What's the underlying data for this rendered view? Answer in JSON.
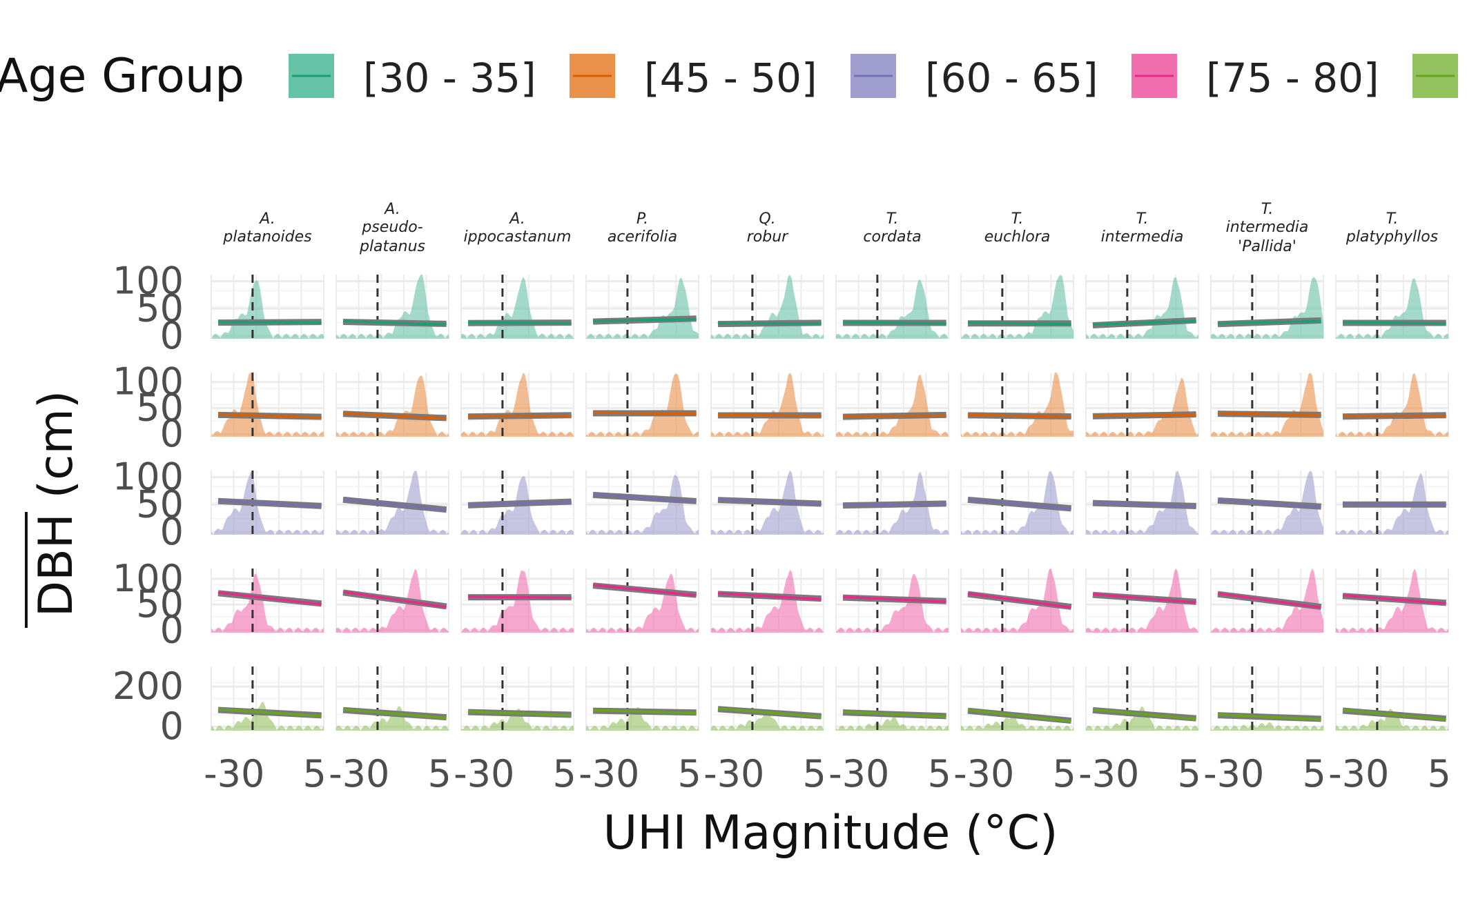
{
  "chart_data": {
    "type": "area",
    "facet_grid": true,
    "legend": {
      "title": "Age Group",
      "position": "top",
      "entries": [
        {
          "label": "[30 - 35]",
          "fill": "#66c2a5",
          "line": "#1b9e77"
        },
        {
          "label": "[45 - 50]",
          "fill": "#e9914a",
          "line": "#d95f02"
        },
        {
          "label": "[60 - 65]",
          "fill": "#a09ecf",
          "line": "#7570b3"
        },
        {
          "label": "[75 - 80]",
          "fill": "#f06eae",
          "line": "#e7298a"
        },
        {
          "label": "",
          "fill": "#93c25f",
          "line": "#66a61e"
        }
      ]
    },
    "columns": [
      [
        "A.",
        "platanoides"
      ],
      [
        "A.",
        "pseudo-",
        "platanus"
      ],
      [
        "A.",
        "ippocastanum"
      ],
      [
        "P.",
        "acerifolia"
      ],
      [
        "Q.",
        "robur"
      ],
      [
        "T.",
        "cordata"
      ],
      [
        "T.",
        "euchlora"
      ],
      [
        "T.",
        "intermedia"
      ],
      [
        "T.",
        "intermedia",
        "'Pallida'"
      ],
      [
        "T.",
        "platyphyllos"
      ]
    ],
    "rows": [
      {
        "group": "[30 - 35]",
        "yticks": [
          "100",
          "50",
          "0"
        ],
        "ytick_values": [
          100,
          50,
          0
        ],
        "ylim": [
          -5,
          112
        ]
      },
      {
        "group": "[45 - 50]",
        "yticks": [
          "100",
          "50",
          "0"
        ],
        "ytick_values": [
          100,
          50,
          0
        ],
        "ylim": [
          -5,
          118
        ]
      },
      {
        "group": "[60 - 65]",
        "yticks": [
          "100",
          "50",
          "0"
        ],
        "ytick_values": [
          100,
          50,
          0
        ],
        "ylim": [
          -5,
          112
        ]
      },
      {
        "group": "[75 - 80]",
        "yticks": [
          "100",
          "50",
          "0"
        ],
        "ytick_values": [
          100,
          50,
          0
        ],
        "ylim": [
          -5,
          120
        ]
      },
      {
        "group": "",
        "yticks": [
          "200",
          "0"
        ],
        "ytick_values": [
          200,
          0
        ],
        "ylim": [
          -20,
          300
        ]
      }
    ],
    "xticks": [
      "-30",
      "5"
    ],
    "xtick_values": [
      -30,
      5
    ],
    "xlim": [
      -40,
      9
    ],
    "reference_line_x": -22,
    "xlabel": "UHI Magnitude (°C)",
    "ylabel": "DBH (cm)",
    "ylabel_overline": true,
    "grid": true,
    "trend": {
      "means": [
        [
          25,
          24,
          24,
          29,
          23,
          24,
          23,
          24,
          25,
          24
        ],
        [
          35,
          35,
          35,
          40,
          36,
          35,
          35,
          36,
          38,
          35
        ],
        [
          52,
          50,
          52,
          62,
          55,
          50,
          51,
          50,
          52,
          50
        ],
        [
          62,
          60,
          64,
          78,
          66,
          60,
          58,
          62,
          58,
          60
        ],
        [
          70,
          65,
          66,
          75,
          70,
          62,
          55,
          62,
          48,
          60
        ]
      ],
      "slopes": [
        [
          0.03,
          -0.08,
          0.02,
          0.12,
          0.05,
          0.0,
          0.0,
          0.2,
          0.15,
          0.0
        ],
        [
          -0.08,
          -0.18,
          0.06,
          0.0,
          0.0,
          0.08,
          -0.05,
          0.08,
          -0.05,
          0.06
        ],
        [
          -0.2,
          -0.4,
          0.15,
          -0.25,
          -0.15,
          0.08,
          -0.35,
          -0.12,
          -0.25,
          0.0
        ],
        [
          -0.45,
          -0.6,
          0.0,
          -0.4,
          -0.2,
          -0.15,
          -0.55,
          -0.3,
          -0.55,
          -0.3
        ],
        [
          -0.6,
          -0.8,
          -0.3,
          -0.2,
          -0.8,
          -0.4,
          -1.1,
          -0.9,
          -0.4,
          -0.9
        ]
      ]
    },
    "density_profiles": [
      [
        [
          0.4,
          0.88
        ],
        [
          0.75,
          0.97
        ],
        [
          0.55,
          0.89
        ],
        [
          0.85,
          0.89
        ],
        [
          0.7,
          0.93
        ],
        [
          0.75,
          0.87
        ],
        [
          0.88,
          0.97
        ],
        [
          0.8,
          0.9
        ],
        [
          0.92,
          0.93
        ],
        [
          0.7,
          0.89
        ]
      ],
      [
        [
          0.35,
          0.97
        ],
        [
          0.75,
          0.92
        ],
        [
          0.55,
          0.94
        ],
        [
          0.8,
          0.96
        ],
        [
          0.7,
          0.93
        ],
        [
          0.75,
          0.9
        ],
        [
          0.85,
          0.95
        ],
        [
          0.85,
          0.85
        ],
        [
          0.88,
          0.95
        ],
        [
          0.7,
          0.92
        ]
      ],
      [
        [
          0.35,
          0.92
        ],
        [
          0.7,
          0.96
        ],
        [
          0.55,
          0.88
        ],
        [
          0.8,
          0.9
        ],
        [
          0.7,
          0.94
        ],
        [
          0.75,
          0.9
        ],
        [
          0.8,
          0.95
        ],
        [
          0.82,
          0.94
        ],
        [
          0.88,
          0.96
        ],
        [
          0.75,
          0.9
        ]
      ],
      [
        [
          0.4,
          0.86
        ],
        [
          0.7,
          0.93
        ],
        [
          0.55,
          0.95
        ],
        [
          0.75,
          0.87
        ],
        [
          0.7,
          0.92
        ],
        [
          0.7,
          0.87
        ],
        [
          0.8,
          0.94
        ],
        [
          0.8,
          0.92
        ],
        [
          0.9,
          0.92
        ],
        [
          0.7,
          0.91
        ]
      ],
      [
        [
          0.45,
          0.38
        ],
        [
          0.55,
          0.32
        ],
        [
          0.5,
          0.28
        ],
        [
          0.45,
          0.3
        ],
        [
          0.5,
          0.25
        ],
        [
          0.5,
          0.15
        ],
        [
          0.45,
          0.18
        ],
        [
          0.5,
          0.3
        ],
        [
          0.5,
          0.06
        ],
        [
          0.5,
          0.28
        ]
      ]
    ]
  }
}
